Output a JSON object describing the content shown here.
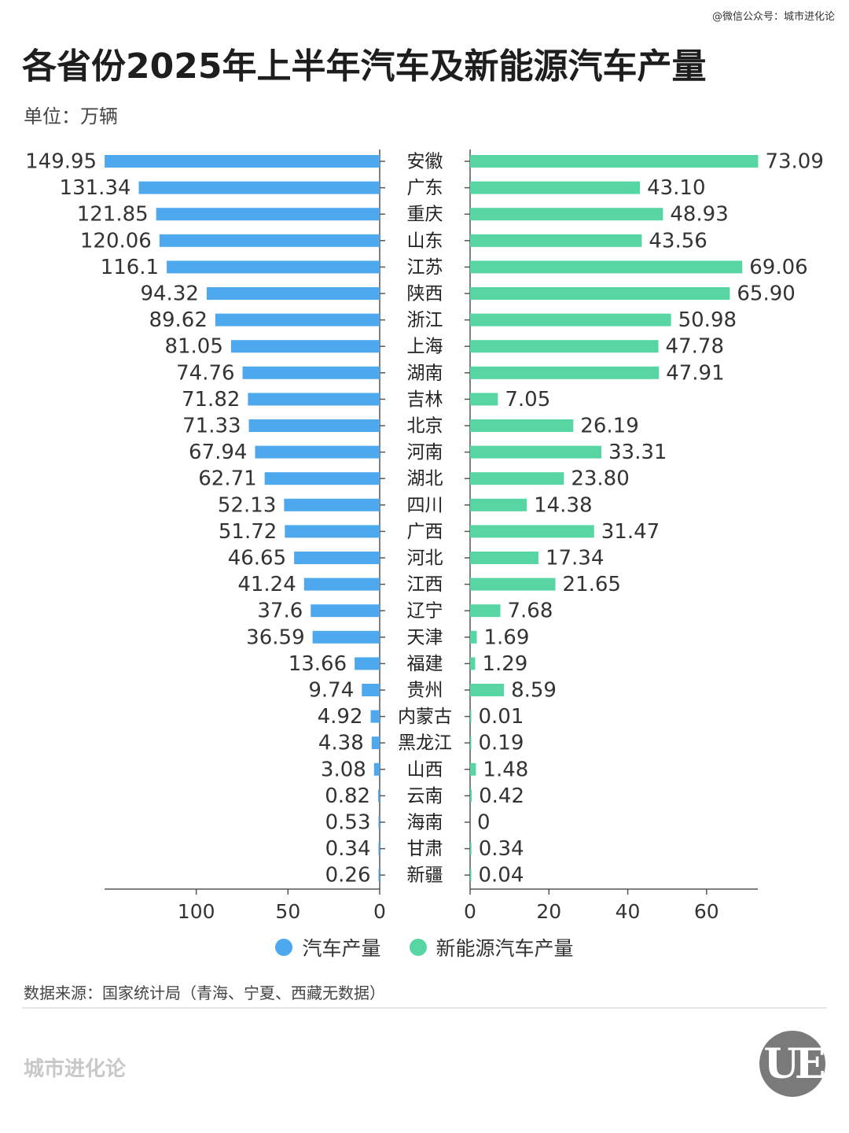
{
  "top_credit": "@微信公众号：城市进化论",
  "title": "各省份2025年上半年汽车及新能源汽车产量",
  "unit": "单位：万辆",
  "source": "数据来源：国家统计局（青海、宁夏、西藏无数据）",
  "brand": "城市进化论",
  "logo_text": "UE",
  "colors": {
    "car": "#4da8ee",
    "nev": "#57d6a4",
    "axis": "#555555"
  },
  "chart_data": {
    "type": "bar",
    "orientation": "horizontal-butterfly",
    "categories": [
      "安徽",
      "广东",
      "重庆",
      "山东",
      "江苏",
      "陕西",
      "浙江",
      "上海",
      "湖南",
      "吉林",
      "北京",
      "河南",
      "湖北",
      "四川",
      "广西",
      "河北",
      "江西",
      "辽宁",
      "天津",
      "福建",
      "贵州",
      "内蒙古",
      "黑龙江",
      "山西",
      "云南",
      "海南",
      "甘肃",
      "新疆"
    ],
    "series": [
      {
        "name": "汽车产量",
        "values": [
          149.95,
          131.34,
          121.85,
          120.06,
          116.1,
          94.32,
          89.62,
          81.05,
          74.76,
          71.82,
          71.33,
          67.94,
          62.71,
          52.13,
          51.72,
          46.65,
          41.24,
          37.6,
          36.59,
          13.66,
          9.74,
          4.92,
          4.38,
          3.08,
          0.82,
          0.53,
          0.34,
          0.26
        ],
        "labels": [
          "149.95",
          "131.34",
          "121.85",
          "120.06",
          "116.1",
          "94.32",
          "89.62",
          "81.05",
          "74.76",
          "71.82",
          "71.33",
          "67.94",
          "62.71",
          "52.13",
          "51.72",
          "46.65",
          "41.24",
          "37.6",
          "36.59",
          "13.66",
          "9.74",
          "4.92",
          "4.38",
          "3.08",
          "0.82",
          "0.53",
          "0.34",
          "0.26"
        ],
        "xlim": [
          0,
          150
        ],
        "ticks": [
          100,
          50,
          0
        ],
        "color": "#4da8ee"
      },
      {
        "name": "新能源汽车产量",
        "values": [
          73.09,
          43.1,
          48.93,
          43.56,
          69.06,
          65.9,
          50.98,
          47.78,
          47.91,
          7.05,
          26.19,
          33.31,
          23.8,
          14.38,
          31.47,
          17.34,
          21.65,
          7.68,
          1.69,
          1.29,
          8.59,
          0.01,
          0.19,
          1.48,
          0.42,
          0,
          0.34,
          0.04
        ],
        "labels": [
          "73.09",
          "43.10",
          "48.93",
          "43.56",
          "69.06",
          "65.90",
          "50.98",
          "47.78",
          "47.91",
          "7.05",
          "26.19",
          "33.31",
          "23.80",
          "14.38",
          "31.47",
          "17.34",
          "21.65",
          "7.68",
          "1.69",
          "1.29",
          "8.59",
          "0.01",
          "0.19",
          "1.48",
          "0.42",
          "0",
          "0.34",
          "0.04"
        ],
        "xlim": [
          0,
          73
        ],
        "ticks": [
          0,
          20,
          40,
          60
        ],
        "color": "#57d6a4"
      }
    ],
    "legend": "bottom-center",
    "grid": false
  }
}
